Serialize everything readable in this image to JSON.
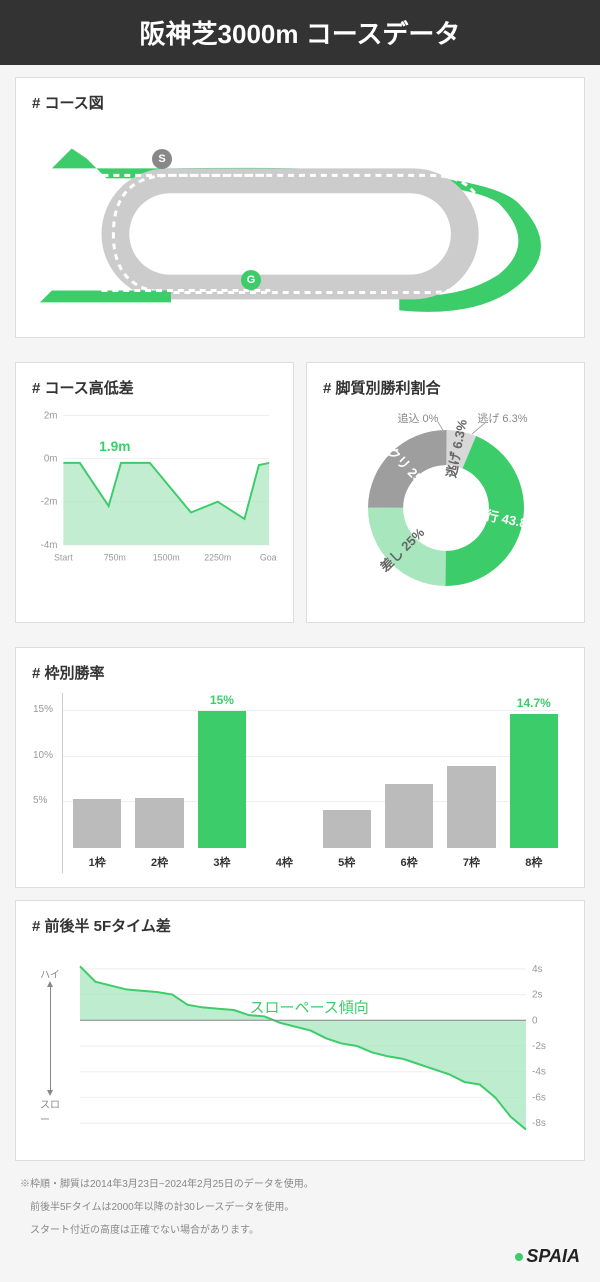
{
  "title": "阪神芝3000m コースデータ",
  "colors": {
    "accent": "#3dcc6a",
    "accent_light": "#a8e6bd",
    "gray": "#bbbbbb",
    "gray_dark": "#888888",
    "bg": "#f5f5f5",
    "card": "#ffffff",
    "text": "#333333"
  },
  "course_map": {
    "title": "# コース図",
    "start_badge": "S",
    "goal_badge": "G",
    "track_outer_color": "#cccccc",
    "track_inner_color": "#ffffff",
    "route_color": "#3dcc6a",
    "route_dash": "5,5"
  },
  "elevation": {
    "title": "# コース高低差",
    "peak_label": "1.9m",
    "y_ticks": [
      "2m",
      "0m",
      "-2m",
      "-4m"
    ],
    "x_ticks": [
      "Start",
      "750m",
      "1500m",
      "2250m",
      "Goal"
    ],
    "points": [
      [
        0,
        -0.2
      ],
      [
        0.08,
        -0.2
      ],
      [
        0.22,
        -2.2
      ],
      [
        0.28,
        -0.2
      ],
      [
        0.42,
        -0.2
      ],
      [
        0.62,
        -2.5
      ],
      [
        0.75,
        -2.0
      ],
      [
        0.88,
        -2.8
      ],
      [
        0.95,
        -0.3
      ],
      [
        1,
        -0.2
      ]
    ],
    "ylim": [
      -4,
      2
    ],
    "fill_color": "#a8e6bd",
    "line_color": "#3dcc6a",
    "peak_label_color": "#3dcc6a"
  },
  "donut": {
    "title": "# 脚質別勝利割合",
    "slices": [
      {
        "label": "逃げ",
        "value": 6.3,
        "color": "#d8d8d8"
      },
      {
        "label": "先行",
        "value": 43.8,
        "color": "#3dcc6a"
      },
      {
        "label": "差し",
        "value": 25.0,
        "color": "#a8e6bd"
      },
      {
        "label": "マクリ",
        "value": 25.0,
        "color": "#9e9e9e"
      },
      {
        "label": "追込",
        "value": 0,
        "color": "#e8e8e8"
      }
    ],
    "inner_radius": 0.55
  },
  "bars": {
    "title": "# 枠別勝率",
    "categories": [
      "1枠",
      "2枠",
      "3枠",
      "4枠",
      "5枠",
      "6枠",
      "7枠",
      "8枠"
    ],
    "values": [
      5.4,
      5.5,
      15.0,
      0,
      4.2,
      7.0,
      9.0,
      14.7
    ],
    "colors": [
      "#bbbbbb",
      "#bbbbbb",
      "#3dcc6a",
      "#bbbbbb",
      "#bbbbbb",
      "#bbbbbb",
      "#bbbbbb",
      "#3dcc6a"
    ],
    "show_label": [
      false,
      false,
      true,
      false,
      false,
      false,
      false,
      true
    ],
    "label_colors": [
      "",
      "",
      "#3dcc6a",
      "",
      "",
      "",
      "",
      "#3dcc6a"
    ],
    "ylim": [
      0,
      17
    ],
    "yticks": [
      5,
      10,
      15
    ],
    "ytick_labels": [
      "5%",
      "10%",
      "15%"
    ]
  },
  "pace": {
    "title": "# 前後半 5Fタイム差",
    "annotation": "スローペース傾向",
    "y_ticks": [
      4,
      2,
      0,
      -2,
      -4,
      -6,
      -8
    ],
    "y_tick_labels": [
      "4s",
      "2s",
      "0",
      "-2s",
      "-4s",
      "-6s",
      "-8s"
    ],
    "ylim": [
      -9,
      5
    ],
    "axis_top": "ハイ",
    "axis_bottom": "スロー",
    "values": [
      4.2,
      3.0,
      2.7,
      2.4,
      2.3,
      2.2,
      2.0,
      1.2,
      1.0,
      0.9,
      0.8,
      0.4,
      0.3,
      -0.2,
      -0.5,
      -0.8,
      -1.4,
      -1.8,
      -2.0,
      -2.5,
      -2.8,
      -3.0,
      -3.4,
      -3.8,
      -4.2,
      -4.8,
      -5.0,
      -6.0,
      -7.5,
      -8.5
    ],
    "fill_color": "#a8e6bd",
    "line_color": "#3dcc6a"
  },
  "footnotes": [
    "※枠順・脚質は2014年3月23日~2024年2月25日のデータを使用。",
    "　前後半5Fタイムは2000年以降の計30レースデータを使用。",
    "　スタート付近の高度は正確でない場合があります。"
  ],
  "brand": "SPAIA"
}
